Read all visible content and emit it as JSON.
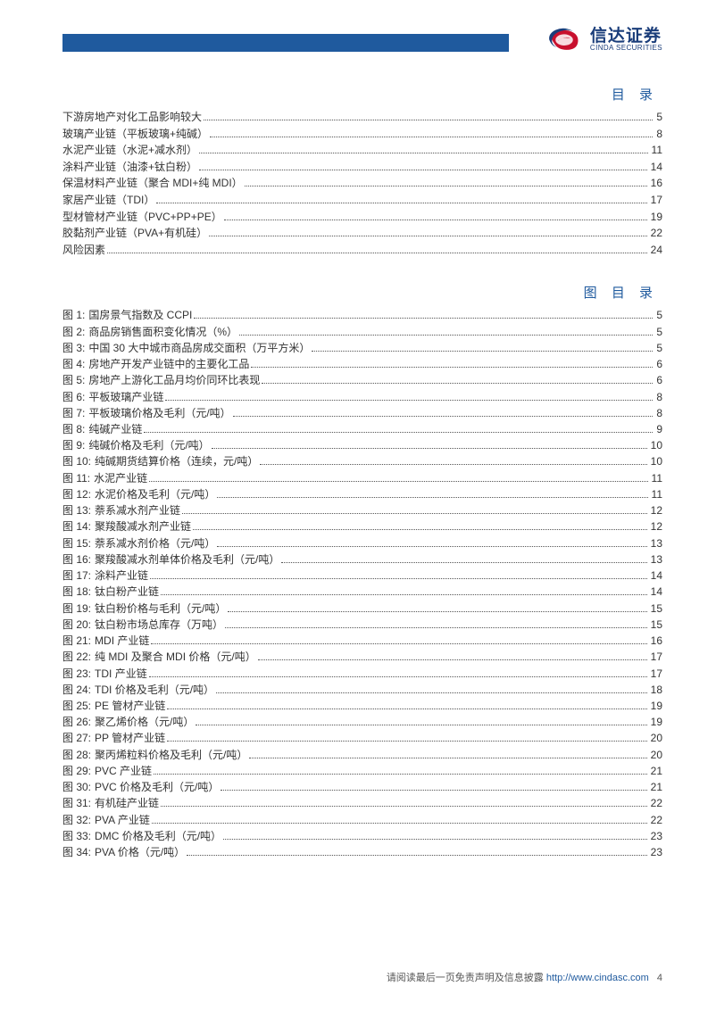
{
  "logo": {
    "cn": "信达证券",
    "en": "CINDA SECURITIES",
    "swirl_color_blue": "#1a3d7a",
    "swirl_color_red": "#c8102e"
  },
  "toc": {
    "title": "目 录",
    "items": [
      {
        "label": "下游房地产对化工品影响较大",
        "page": "5"
      },
      {
        "label": "玻璃产业链（平板玻璃+纯碱）",
        "page": "8"
      },
      {
        "label": "水泥产业链（水泥+减水剂）",
        "page": "11"
      },
      {
        "label": "涂料产业链（油漆+钛白粉）",
        "page": "14"
      },
      {
        "label": "保温材料产业链（聚合 MDI+纯 MDI）",
        "page": "16"
      },
      {
        "label": "家居产业链（TDI）",
        "page": "17"
      },
      {
        "label": "型材管材产业链（PVC+PP+PE）",
        "page": "19"
      },
      {
        "label": "胶黏剂产业链（PVA+有机硅）",
        "page": "22"
      },
      {
        "label": "风险因素",
        "page": "24"
      }
    ]
  },
  "figures": {
    "title": "图 目 录",
    "prefix": "图",
    "items": [
      {
        "n": "1",
        "label": "国房景气指数及 CCPI",
        "page": "5"
      },
      {
        "n": "2",
        "label": "商品房销售面积变化情况（%）",
        "page": "5"
      },
      {
        "n": "3",
        "label": "中国 30 大中城市商品房成交面积（万平方米）",
        "page": "5"
      },
      {
        "n": "4",
        "label": "房地产开发产业链中的主要化工品",
        "page": "6"
      },
      {
        "n": "5",
        "label": "房地产上游化工品月均价同环比表现",
        "page": "6"
      },
      {
        "n": "6",
        "label": "平板玻璃产业链",
        "page": "8"
      },
      {
        "n": "7",
        "label": "平板玻璃价格及毛利（元/吨）",
        "page": "8"
      },
      {
        "n": "8",
        "label": "纯碱产业链",
        "page": "9"
      },
      {
        "n": "9",
        "label": "纯碱价格及毛利（元/吨）",
        "page": "10"
      },
      {
        "n": "10",
        "label": "纯碱期货结算价格（连续，元/吨）",
        "page": "10"
      },
      {
        "n": "11",
        "label": "水泥产业链",
        "page": "11"
      },
      {
        "n": "12",
        "label": "水泥价格及毛利（元/吨）",
        "page": "11"
      },
      {
        "n": "13",
        "label": "萘系减水剂产业链",
        "page": "12"
      },
      {
        "n": "14",
        "label": "聚羧酸减水剂产业链",
        "page": "12"
      },
      {
        "n": "15",
        "label": "萘系减水剂价格（元/吨）",
        "page": "13"
      },
      {
        "n": "16",
        "label": "聚羧酸减水剂单体价格及毛利（元/吨）",
        "page": "13"
      },
      {
        "n": "17",
        "label": "涂料产业链",
        "page": "14"
      },
      {
        "n": "18",
        "label": "钛白粉产业链",
        "page": "14"
      },
      {
        "n": "19",
        "label": "钛白粉价格与毛利（元/吨）",
        "page": "15"
      },
      {
        "n": "20",
        "label": "钛白粉市场总库存（万吨）",
        "page": "15"
      },
      {
        "n": "21",
        "label": "MDI 产业链",
        "page": "16"
      },
      {
        "n": "22",
        "label": "纯 MDI 及聚合 MDI 价格（元/吨）",
        "page": "17"
      },
      {
        "n": "23",
        "label": "TDI 产业链",
        "page": "17"
      },
      {
        "n": "24",
        "label": "TDI 价格及毛利（元/吨）",
        "page": "18"
      },
      {
        "n": "25",
        "label": "PE 管材产业链",
        "page": "19"
      },
      {
        "n": "26",
        "label": "聚乙烯价格（元/吨）",
        "page": "19"
      },
      {
        "n": "27",
        "label": "PP 管材产业链",
        "page": "20"
      },
      {
        "n": "28",
        "label": "聚丙烯粒料价格及毛利（元/吨）",
        "page": "20"
      },
      {
        "n": "29",
        "label": "PVC 产业链",
        "page": "21"
      },
      {
        "n": "30",
        "label": "PVC 价格及毛利（元/吨）",
        "page": "21"
      },
      {
        "n": "31",
        "label": "有机硅产业链",
        "page": "22"
      },
      {
        "n": "32",
        "label": "PVA 产业链",
        "page": "22"
      },
      {
        "n": "33",
        "label": "DMC 价格及毛利（元/吨）",
        "page": "23"
      },
      {
        "n": "34",
        "label": "PVA 价格（元/吨）",
        "page": "23"
      }
    ]
  },
  "footer": {
    "text": "请阅读最后一页免责声明及信息披露",
    "url": "http://www.cindasc.com",
    "page_num": "4"
  },
  "colors": {
    "brand_blue": "#1f5a9e",
    "text": "#333333",
    "link": "#1f5a9e"
  }
}
